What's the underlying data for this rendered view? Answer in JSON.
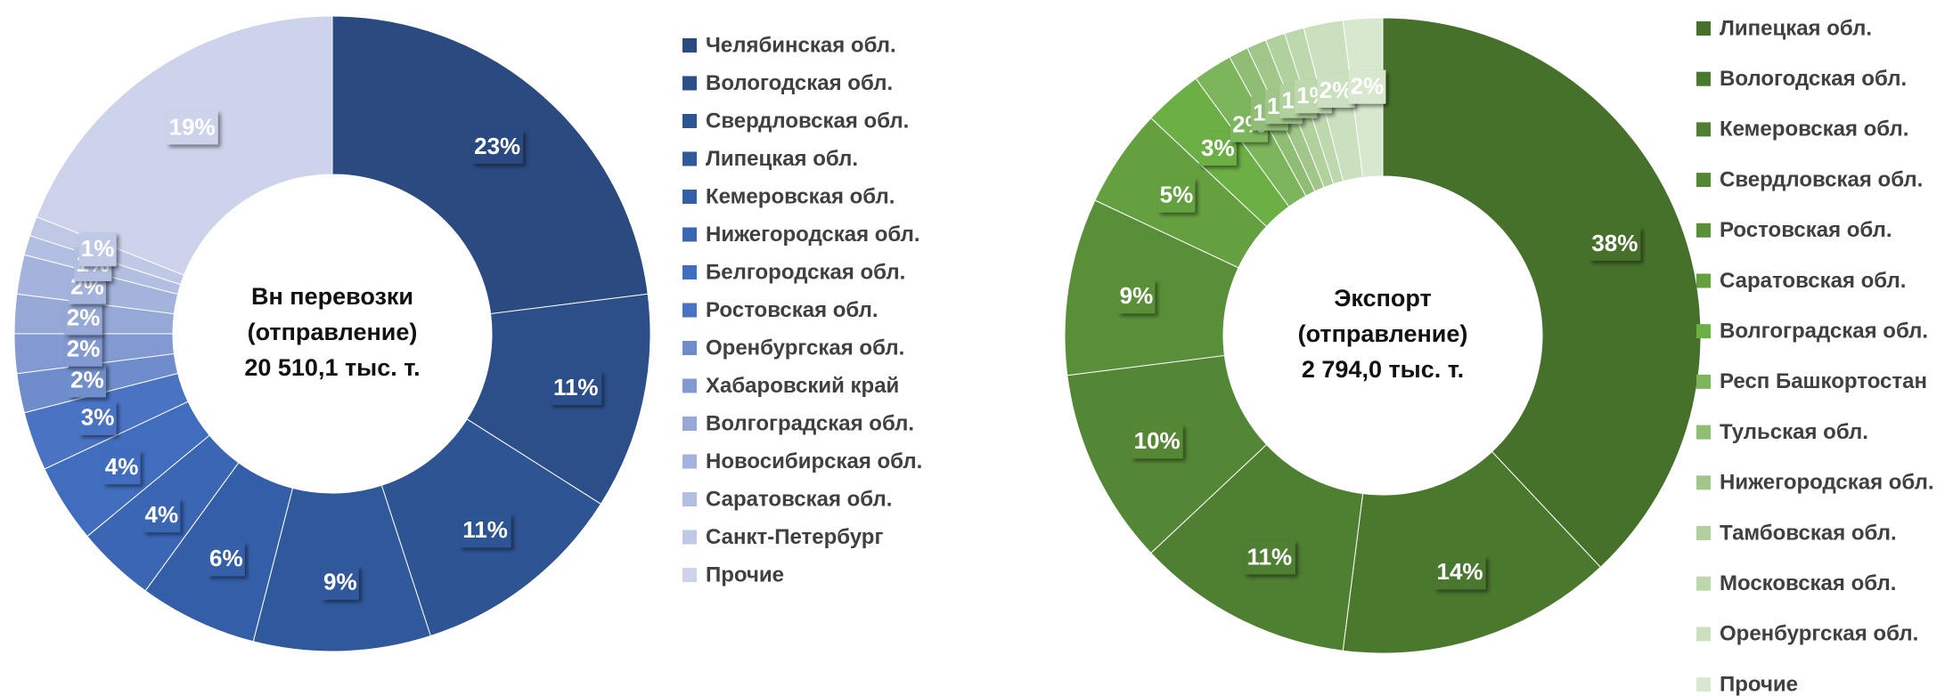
{
  "chart_data": [
    {
      "type": "doughnut",
      "center_text": [
        "Вн перевозки",
        "(отправление)",
        "20 510,1 тыс. т."
      ],
      "categories": [
        "Челябинская обл.",
        "Вологодская обл.",
        "Свердловская обл.",
        "Липецкая обл.",
        "Кемеровская обл.",
        "Нижегородская обл.",
        "Белгородская обл.",
        "Ростовская обл.",
        "Оренбургская обл.",
        "Хабаровский край",
        "Волгоградская обл.",
        "Новосибирская обл.",
        "Саратовская обл.",
        "Санкт-Петербург",
        "Прочие"
      ],
      "values": [
        23,
        11,
        11,
        9,
        6,
        4,
        4,
        3,
        2,
        2,
        2,
        2,
        1,
        1,
        19
      ],
      "value_labels": [
        "23%",
        "11%",
        "11%",
        "9%",
        "6%",
        "4%",
        "4%",
        "3%",
        "2%",
        "2%",
        "2%",
        "2%",
        "1%",
        "1%",
        "19%"
      ],
      "colors": [
        "#2a4a80",
        "#2c4f8a",
        "#2e5493",
        "#30599c",
        "#345fa8",
        "#3a66b4",
        "#416dbe",
        "#4a73c4",
        "#6f8dcc",
        "#8299d1",
        "#95a8d6",
        "#a4b3dc",
        "#b2bfe2",
        "#bfc9e6",
        "#cdd3ea"
      ]
    },
    {
      "type": "doughnut",
      "center_text": [
        "Экспорт",
        "(отправление)",
        "2 794,0 тыс. т."
      ],
      "categories": [
        "Липецкая обл.",
        "Вологодская обл.",
        "Кемеровская обл.",
        "Свердловская обл.",
        "Ростовская обл.",
        "Саратовская обл.",
        "Волгоградская обл.",
        "Респ Башкортостан",
        "Тульская обл.",
        "Нижегородская обл.",
        "Тамбовская обл.",
        "Московская обл.",
        "Оренбургская обл.",
        "Прочие"
      ],
      "values": [
        38,
        14,
        11,
        10,
        9,
        5,
        3,
        2,
        1,
        1,
        1,
        1,
        2,
        2
      ],
      "value_labels": [
        "38%",
        "14%",
        "11%",
        "10%",
        "9%",
        "5%",
        "3%",
        "2%",
        "1%",
        "1%",
        "1%",
        "1%",
        "2%",
        "2%"
      ],
      "colors": [
        "#46712b",
        "#4a782d",
        "#4f7f31",
        "#548735",
        "#5a8f39",
        "#64a03f",
        "#6caf45",
        "#7db55c",
        "#8fbd74",
        "#a0c789",
        "#b0d09c",
        "#bed8ae",
        "#cbe0bf",
        "#d8e8cf"
      ]
    }
  ]
}
